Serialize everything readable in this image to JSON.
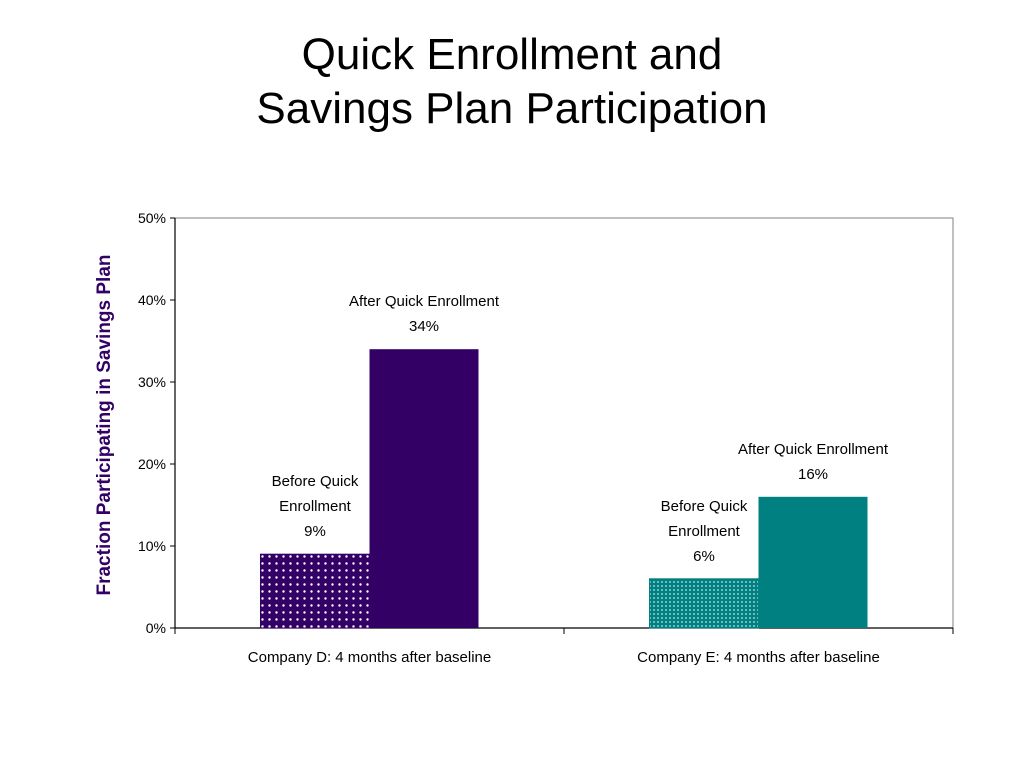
{
  "title_lines": [
    "Quick Enrollment and",
    "Savings Plan Participation"
  ],
  "chart_data": {
    "type": "bar",
    "title": "Quick Enrollment and Savings Plan Participation",
    "ylabel": "Fraction Participating in Savings Plan",
    "ylim": [
      0,
      50
    ],
    "yticks": [
      "0%",
      "10%",
      "20%",
      "30%",
      "40%",
      "50%"
    ],
    "categories": [
      "Company D: 4 months after baseline",
      "Company E: 4 months after baseline"
    ],
    "bars": [
      {
        "category": 0,
        "label_lines": [
          "Before Quick",
          "Enrollment",
          "9%"
        ],
        "value": 9,
        "color": "#330066",
        "pattern": "dots"
      },
      {
        "category": 0,
        "label_lines": [
          "After Quick Enrollment",
          "34%"
        ],
        "value": 34,
        "color": "#330066",
        "pattern": "solid"
      },
      {
        "category": 1,
        "label_lines": [
          "Before Quick",
          "Enrollment",
          "6%"
        ],
        "value": 6,
        "color": "#008080",
        "pattern": "dots"
      },
      {
        "category": 1,
        "label_lines": [
          "After Quick Enrollment",
          "16%"
        ],
        "value": 16,
        "color": "#008080",
        "pattern": "solid"
      }
    ],
    "ylabel_color": "#330066",
    "grid": false,
    "legend": "none"
  }
}
